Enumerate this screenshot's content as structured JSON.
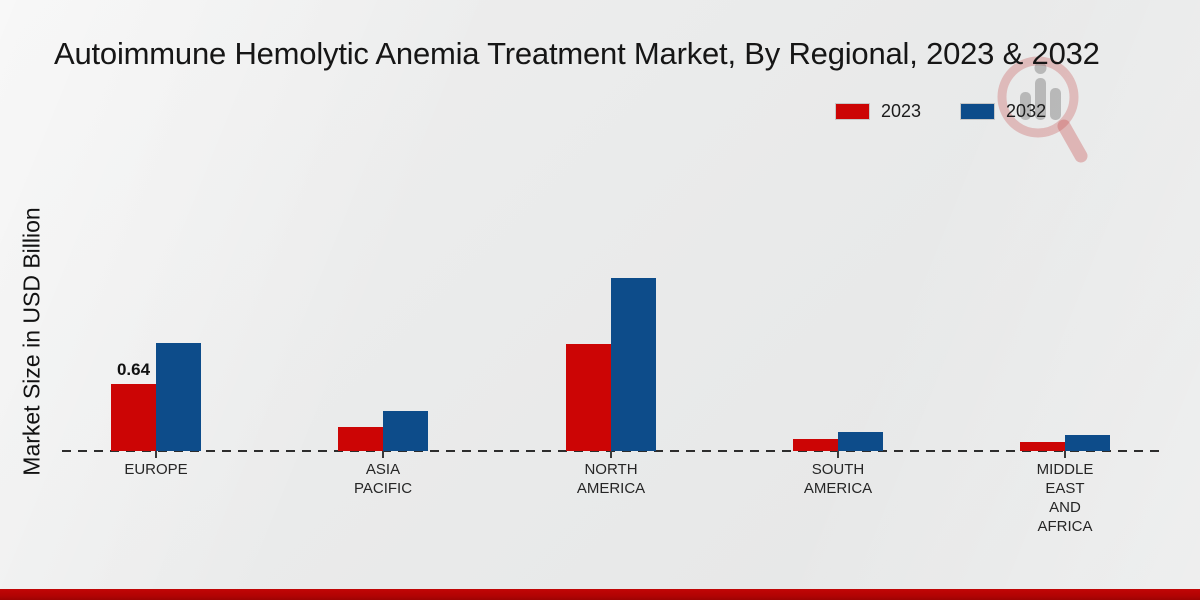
{
  "page": {
    "title": "Autoimmune Hemolytic Anemia Treatment Market, By Regional, 2023 & 2032"
  },
  "axes": {
    "y_label": "Market Size in USD Billion"
  },
  "legend": {
    "items": [
      {
        "label": "2023",
        "color": "#cc0505"
      },
      {
        "label": "2032",
        "color": "#0d4c8a"
      }
    ]
  },
  "watermark": {
    "icon": "magnifier-bar-chart-logo"
  },
  "chart_data": {
    "type": "bar",
    "title": "Autoimmune Hemolytic Anemia Treatment Market, By Regional, 2023 & 2032",
    "xlabel": "",
    "ylabel": "Market Size in USD Billion",
    "unit": "USD Billion",
    "categories": [
      "EUROPE",
      "ASIA PACIFIC",
      "NORTH AMERICA",
      "SOUTH AMERICA",
      "MIDDLE EAST AND AFRICA"
    ],
    "category_label_lines": [
      [
        "EUROPE"
      ],
      [
        "ASIA",
        "PACIFIC"
      ],
      [
        "NORTH",
        "AMERICA"
      ],
      [
        "SOUTH",
        "AMERICA"
      ],
      [
        "MIDDLE",
        "EAST",
        "AND",
        "AFRICA"
      ]
    ],
    "series": [
      {
        "name": "2023",
        "color": "#cc0505",
        "values": [
          0.64,
          0.23,
          1.02,
          0.11,
          0.09
        ],
        "data_labels": [
          "0.64",
          "",
          "",
          "",
          ""
        ]
      },
      {
        "name": "2032",
        "color": "#0d4c8a",
        "values": [
          1.03,
          0.38,
          1.65,
          0.18,
          0.15
        ],
        "data_labels": [
          "",
          "",
          "",
          "",
          ""
        ]
      }
    ],
    "ylim": [
      0,
      1.9
    ],
    "grid": false,
    "y_axis_ticks_visible": false,
    "legend_position": "top-right",
    "baseline_style": "dashed"
  }
}
